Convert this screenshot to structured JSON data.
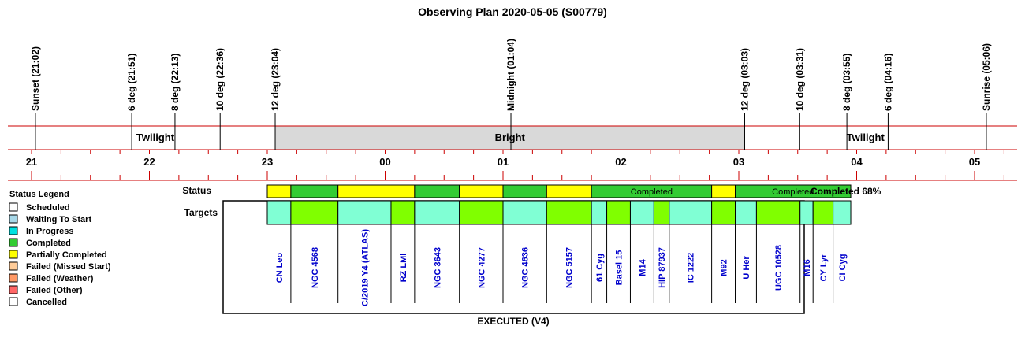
{
  "title": "Observing Plan 2020-05-05 (S00779)",
  "colors": {
    "line": "#cc0000",
    "bright_band": "#d9d9d9",
    "target_link": "#0000cc",
    "status_completed": "#33cc33",
    "status_partial": "#ffff00",
    "target_a": "#80ffd4",
    "target_b": "#80ff00"
  },
  "chart_data": {
    "type": "timeline",
    "time_axis": {
      "hour_labels": [
        "21",
        "22",
        "23",
        "00",
        "01",
        "02",
        "03",
        "04",
        "05"
      ],
      "hour_values": [
        21,
        22,
        23,
        24,
        25,
        26,
        27,
        28,
        29
      ],
      "range_hours": [
        20.83,
        29.33
      ]
    },
    "events": [
      {
        "label": "Sunset (21:02)",
        "time": 21.033
      },
      {
        "label": "6 deg (21:51)",
        "time": 21.85
      },
      {
        "label": "8 deg (22:13)",
        "time": 22.217
      },
      {
        "label": "10 deg (22:36)",
        "time": 22.6
      },
      {
        "label": "12 deg (23:04)",
        "time": 23.067
      },
      {
        "label": "Midnight (01:04)",
        "time": 25.067
      },
      {
        "label": "12 deg (03:03)",
        "time": 27.05
      },
      {
        "label": "10 deg (03:31)",
        "time": 27.517
      },
      {
        "label": "8 deg (03:55)",
        "time": 27.917
      },
      {
        "label": "6 deg (04:16)",
        "time": 28.267
      },
      {
        "label": "Sunrise (05:06)",
        "time": 29.1
      }
    ],
    "sky_bands": [
      {
        "label": "Twilight",
        "start": 21.033,
        "end": 23.067,
        "kind": "twilight"
      },
      {
        "label": "Bright",
        "start": 23.067,
        "end": 27.05,
        "kind": "bright"
      },
      {
        "label": "Twilight",
        "start": 27.05,
        "end": 29.1,
        "kind": "twilight"
      }
    ],
    "status_row_label": "Status",
    "targets_row_label": "Targets",
    "status_segments": [
      {
        "start": 23.0,
        "end": 23.2,
        "status": "partial",
        "label": ""
      },
      {
        "start": 23.2,
        "end": 23.6,
        "status": "completed",
        "label": ""
      },
      {
        "start": 23.6,
        "end": 24.25,
        "status": "partial",
        "label": ""
      },
      {
        "start": 24.25,
        "end": 24.63,
        "status": "completed",
        "label": ""
      },
      {
        "start": 24.63,
        "end": 25.0,
        "status": "partial",
        "label": ""
      },
      {
        "start": 25.0,
        "end": 25.37,
        "status": "completed",
        "label": ""
      },
      {
        "start": 25.37,
        "end": 25.75,
        "status": "partial",
        "label": ""
      },
      {
        "start": 25.75,
        "end": 26.77,
        "status": "completed",
        "label": "Completed"
      },
      {
        "start": 26.77,
        "end": 26.97,
        "status": "partial",
        "label": ""
      },
      {
        "start": 26.97,
        "end": 27.95,
        "status": "completed",
        "label": "Completed"
      }
    ],
    "targets": [
      {
        "name": "CN Leo",
        "start": 23.0,
        "end": 23.2
      },
      {
        "name": "NGC 4568",
        "start": 23.2,
        "end": 23.6
      },
      {
        "name": "C/2019 Y4 (ATLAS)",
        "start": 23.6,
        "end": 24.05
      },
      {
        "name": "RZ LMi",
        "start": 24.05,
        "end": 24.25
      },
      {
        "name": "NGC 3643",
        "start": 24.25,
        "end": 24.63
      },
      {
        "name": "NGC 4277",
        "start": 24.63,
        "end": 25.0
      },
      {
        "name": "NGC 4636",
        "start": 25.0,
        "end": 25.37
      },
      {
        "name": "NGC 5157",
        "start": 25.37,
        "end": 25.75
      },
      {
        "name": "61 Cyg",
        "start": 25.75,
        "end": 25.88
      },
      {
        "name": "Basel 15",
        "start": 25.88,
        "end": 26.08
      },
      {
        "name": "M14",
        "start": 26.08,
        "end": 26.28
      },
      {
        "name": "HIP 87937",
        "start": 26.28,
        "end": 26.41
      },
      {
        "name": "IC 1222",
        "start": 26.41,
        "end": 26.77
      },
      {
        "name": "M92",
        "start": 26.77,
        "end": 26.97
      },
      {
        "name": "U Her",
        "start": 26.97,
        "end": 27.15
      },
      {
        "name": "UGC 10528",
        "start": 27.15,
        "end": 27.52
      },
      {
        "name": "M16",
        "start": 27.52,
        "end": 27.63
      },
      {
        "name": "CY Lyr",
        "start": 27.63,
        "end": 27.8
      },
      {
        "name": "CI Cyg",
        "start": 27.8,
        "end": 27.95
      }
    ],
    "completion_text": "Completed 68%",
    "footer": "EXECUTED (V4)",
    "legend": {
      "title": "Status Legend",
      "items": [
        {
          "label": "Scheduled",
          "color": "#ffffff"
        },
        {
          "label": "Waiting To Start",
          "color": "#a8d8e8"
        },
        {
          "label": "In Progress",
          "color": "#00e0e0"
        },
        {
          "label": "Completed",
          "color": "#33cc33"
        },
        {
          "label": "Partially Completed",
          "color": "#ffff00"
        },
        {
          "label": "Failed (Missed Start)",
          "color": "#ffcc99"
        },
        {
          "label": "Failed (Weather)",
          "color": "#ff9966"
        },
        {
          "label": "Failed (Other)",
          "color": "#ff6666"
        },
        {
          "label": "Cancelled",
          "color": "#ffffff"
        }
      ]
    }
  }
}
